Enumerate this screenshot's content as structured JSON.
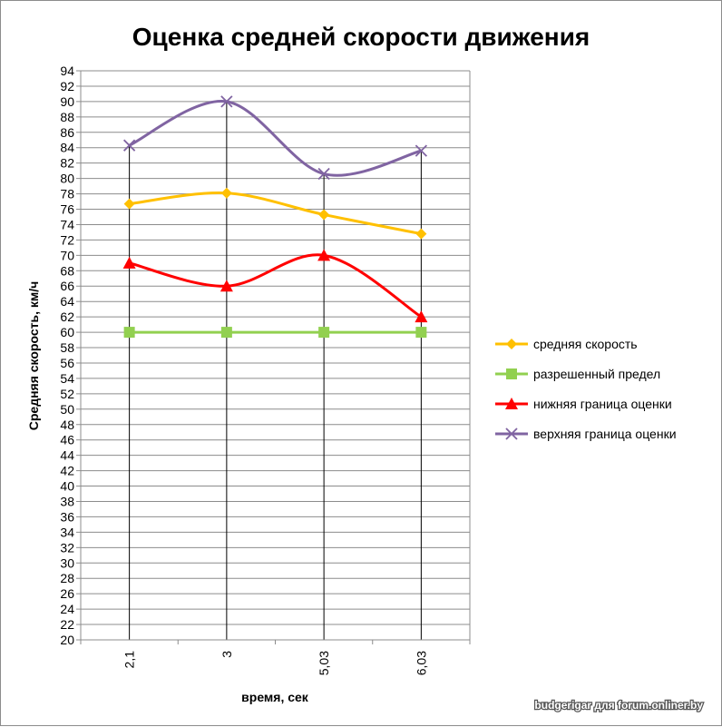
{
  "chart_data": {
    "type": "line",
    "title": "Оценка средней скорости движения",
    "xlabel": "время, сек",
    "ylabel": "Средняя скорость, км/ч",
    "categories": [
      "2,1",
      "3",
      "5,03",
      "6,03"
    ],
    "ylim": [
      20,
      94
    ],
    "ytick_step": 2,
    "grid": true,
    "legend_position": "right",
    "drop_lines": true,
    "smooth": true,
    "series": [
      {
        "name": "средняя скорость",
        "values": [
          76.7,
          78.1,
          75.3,
          72.8
        ],
        "color": "#FFC000",
        "marker": "diamond"
      },
      {
        "name": "разрешенный предел",
        "values": [
          60,
          60,
          60,
          60
        ],
        "color": "#92D050",
        "marker": "square"
      },
      {
        "name": "нижняя граница оценки",
        "values": [
          69,
          66,
          70,
          62
        ],
        "color": "#FF0000",
        "marker": "triangle"
      },
      {
        "name": "верхняя граница оценки",
        "values": [
          84.3,
          90,
          80.6,
          83.6
        ],
        "color": "#8064A2",
        "marker": "x"
      }
    ]
  },
  "watermark": "budgerigar для forum.onliner.by"
}
